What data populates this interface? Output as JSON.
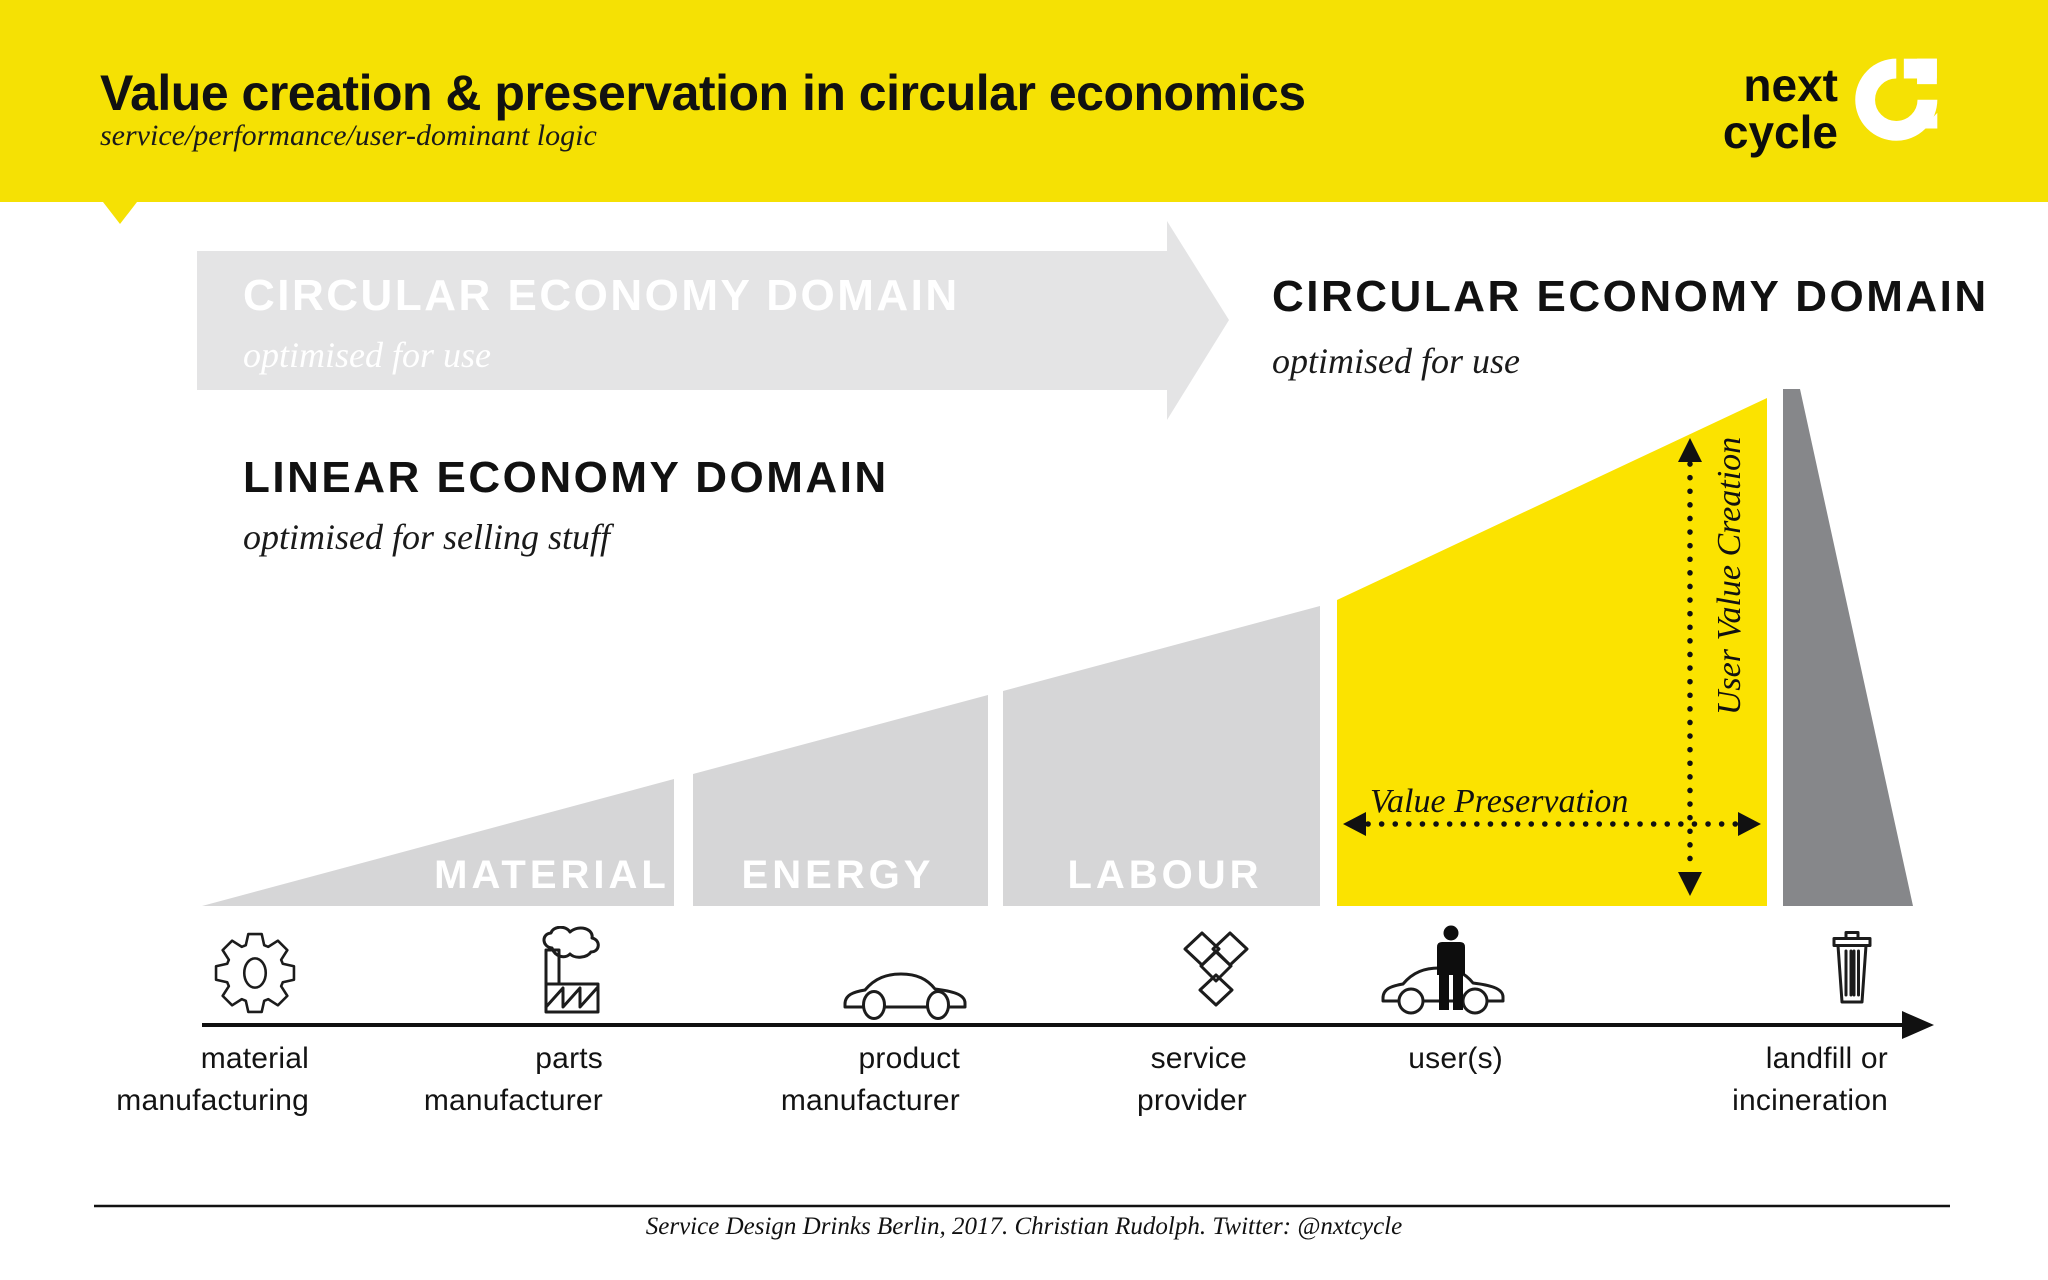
{
  "colors": {
    "brand_yellow": "#F5E104",
    "wedge_yellow": "#FBE300",
    "segment_gray": "#D6D6D7",
    "arrow_gray": "#E4E4E5",
    "dark_gray": "#86878A",
    "ink": "#141414",
    "white": "#FFFFFF"
  },
  "header": {
    "title": "Value creation & preservation in circular economics",
    "subtitle": "service/performance/user-dominant logic",
    "logo_line1": "next",
    "logo_line2": "cycle"
  },
  "domains": {
    "arrow_title": "CIRCULAR ECONOMY DOMAIN",
    "arrow_subtitle": "optimised for use",
    "circular_title": "CIRCULAR ECONOMY DOMAIN",
    "circular_subtitle": "optimised for use",
    "linear_title": "LINEAR ECONOMY DOMAIN",
    "linear_subtitle": "optimised for selling stuff"
  },
  "wedge": {
    "segments": [
      "MATERIAL",
      "ENERGY",
      "LABOUR"
    ],
    "value_preservation": "Value Preservation",
    "user_value_creation": "User Value Creation"
  },
  "axis": {
    "stages": [
      {
        "icon": "gear-icon",
        "lines": [
          "material",
          "manufacturing"
        ]
      },
      {
        "icon": "factory-icon",
        "lines": [
          "parts",
          "manufacturer"
        ]
      },
      {
        "icon": "car-icon",
        "lines": [
          "product",
          "manufacturer"
        ]
      },
      {
        "icon": "open-box-icon",
        "lines": [
          "service",
          "provider"
        ]
      },
      {
        "icon": "user-with-car-icon",
        "lines": [
          "user(s)"
        ]
      },
      {
        "icon": "trash-bin-icon",
        "lines": [
          "landfill or",
          "incineration"
        ]
      }
    ]
  },
  "footer": {
    "credit": "Service Design Drinks Berlin, 2017. Christian Rudolph. Twitter: @nxtcycle"
  }
}
